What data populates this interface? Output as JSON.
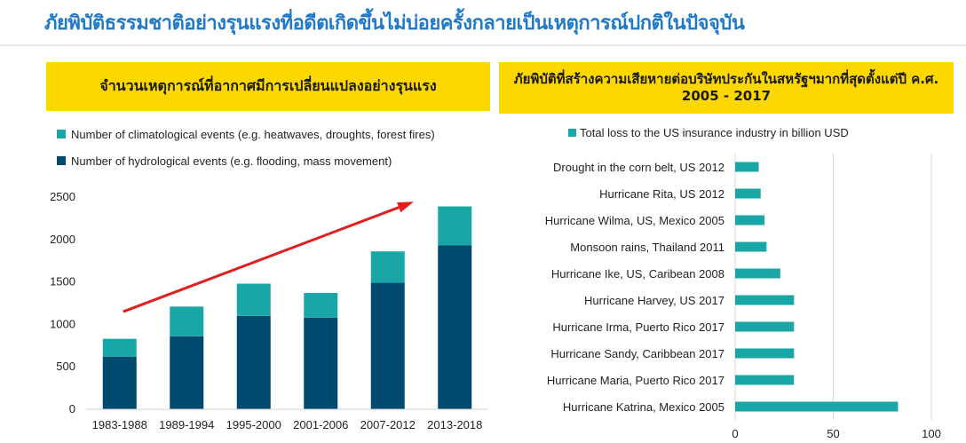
{
  "page": {
    "title": "ภัยพิบัติธรรมชาติอย่างรุนแรงที่อดีตเกิดขึ้นไม่บ่อยครั้งกลายเป็นเหตุการณ์ปกติในปัจจุบัน",
    "left_header": "จำนวนเหตุการณ์ที่อากาศมีการเปลี่ยนแปลงอย่างรุนแรง",
    "right_header": "ภัยพิบัติที่สร้างความเสียหายต่อบริษัทประกันในสหรัฐฯมากที่สุดตั้งแต่ปี ค.ศ. 2005 - 2017"
  },
  "chart_data": [
    {
      "type": "bar",
      "stacked": true,
      "title": "",
      "xlabel": "",
      "ylabel": "",
      "categories": [
        "1983-1988",
        "1989-1994",
        "1995-2000",
        "2001-2006",
        "2007-2012",
        "2013-2018"
      ],
      "series": [
        {
          "name": "Number of hydrological events (e.g. flooding, mass movement)",
          "color": "#004a6f",
          "values": [
            620,
            860,
            1100,
            1080,
            1490,
            1930
          ]
        },
        {
          "name": "Number of climatological events (e.g. heatwaves, droughts, forest fires)",
          "color": "#1aa6a6",
          "values": [
            210,
            350,
            380,
            290,
            370,
            460
          ]
        }
      ],
      "ylim": [
        0,
        2500
      ],
      "yticks": [
        0,
        500,
        1000,
        1500,
        2000,
        2500
      ],
      "legend": "top-left",
      "grid": false,
      "annotation": {
        "type": "trend-arrow",
        "color": "#e02020",
        "from": {
          "x": "1983-1988",
          "y": 1150
        },
        "to": {
          "x": "2013-2018",
          "y": 2430
        }
      }
    },
    {
      "type": "bar",
      "orientation": "horizontal",
      "title": "",
      "xlabel": "",
      "ylabel": "",
      "categories": [
        "Drought in the corn belt, US 2012",
        "Hurricane Rita, US 2012",
        "Hurricane Wilma, US, Mexico 2005",
        "Monsoon rains, Thailand 2011",
        "Hurricane Ike, US, Caribean 2008",
        "Hurricane Harvey, US 2017",
        "Hurricane Irma, Puerto Rico 2017",
        "Hurricane Sandy, Caribbean 2017",
        "Hurricane Maria, Puerto Rico 2017",
        "Hurricane Katrina, Mexico 2005"
      ],
      "series": [
        {
          "name": "Total loss to the US insurance industry in billion USD",
          "color": "#1aa6a6",
          "values": [
            12,
            13,
            15,
            16,
            23,
            30,
            30,
            30,
            30,
            83
          ]
        }
      ],
      "xlim": [
        0,
        100
      ],
      "xticks": [
        0,
        50,
        100
      ],
      "legend": "top",
      "grid": true
    }
  ]
}
